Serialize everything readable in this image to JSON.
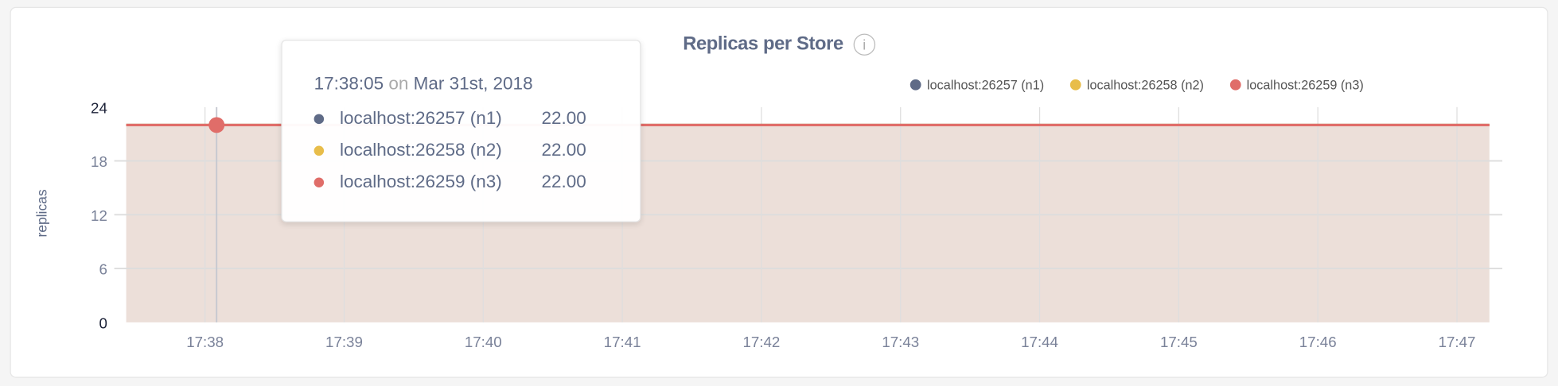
{
  "chart_data": {
    "type": "area",
    "title": "Replicas per Store",
    "ylabel": "replicas",
    "xlabel": "",
    "ylim": [
      0,
      24
    ],
    "yticks": [
      "0",
      "6",
      "12",
      "18",
      "24"
    ],
    "xticks": [
      "17:38",
      "17:39",
      "17:40",
      "17:41",
      "17:42",
      "17:43",
      "17:44",
      "17:45",
      "17:46",
      "17:47"
    ],
    "xrange": [
      "17:37:26",
      "17:47:14"
    ],
    "grid": true,
    "legend_position": "top-right",
    "series": [
      {
        "name": "localhost:26257 (n1)",
        "color": "#5f6b87",
        "x": [
          "17:37:26",
          "17:47:14"
        ],
        "values": [
          22,
          22
        ]
      },
      {
        "name": "localhost:26258 (n2)",
        "color": "#e8bd4a",
        "x": [
          "17:37:26",
          "17:47:14"
        ],
        "values": [
          22,
          22
        ]
      },
      {
        "name": "localhost:26259 (n3)",
        "color": "#e06d69",
        "x": [
          "17:37:26",
          "17:47:14"
        ],
        "values": [
          22,
          22
        ]
      }
    ],
    "hover": {
      "time": "17:38:05",
      "on": "on",
      "date": "Mar 31st, 2018",
      "values": [
        "22.00",
        "22.00",
        "22.00"
      ]
    }
  },
  "info_icon": "info-circle-icon"
}
